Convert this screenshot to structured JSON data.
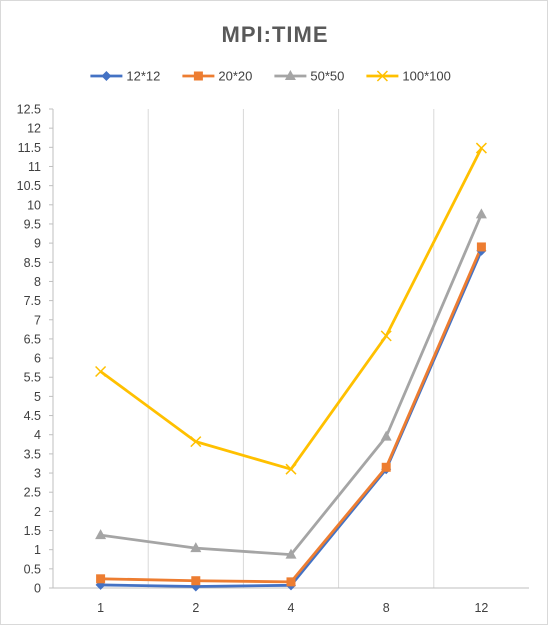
{
  "chart_data": {
    "type": "line",
    "title": "MPI:TIME",
    "xlabel": "",
    "ylabel": "",
    "categories": [
      "1",
      "2",
      "4",
      "8",
      "12"
    ],
    "ylim": [
      0,
      12.5
    ],
    "y_ticks": [
      "0",
      "0.5",
      "1",
      "1.5",
      "2",
      "2.5",
      "3",
      "3.5",
      "4",
      "4.5",
      "5",
      "5.5",
      "6",
      "6.5",
      "7",
      "7.5",
      "8",
      "8.5",
      "9",
      "9.5",
      "10",
      "10.5",
      "11",
      "11.5",
      "12",
      "12.5"
    ],
    "grid": "vertical",
    "legend_position": "top",
    "series": [
      {
        "name": "12*12",
        "color": "#4472C4",
        "marker": "diamond",
        "values": [
          0.08,
          0.04,
          0.07,
          3.1,
          8.8
        ]
      },
      {
        "name": "20*20",
        "color": "#ED7D31",
        "marker": "square",
        "values": [
          0.24,
          0.19,
          0.16,
          3.15,
          8.9
        ]
      },
      {
        "name": "50*50",
        "color": "#A5A5A5",
        "marker": "triangle",
        "values": [
          1.38,
          1.04,
          0.87,
          3.95,
          9.75
        ]
      },
      {
        "name": "100*100",
        "color": "#FFC000",
        "marker": "x",
        "values": [
          5.65,
          3.82,
          3.1,
          6.58,
          11.48
        ]
      }
    ]
  }
}
